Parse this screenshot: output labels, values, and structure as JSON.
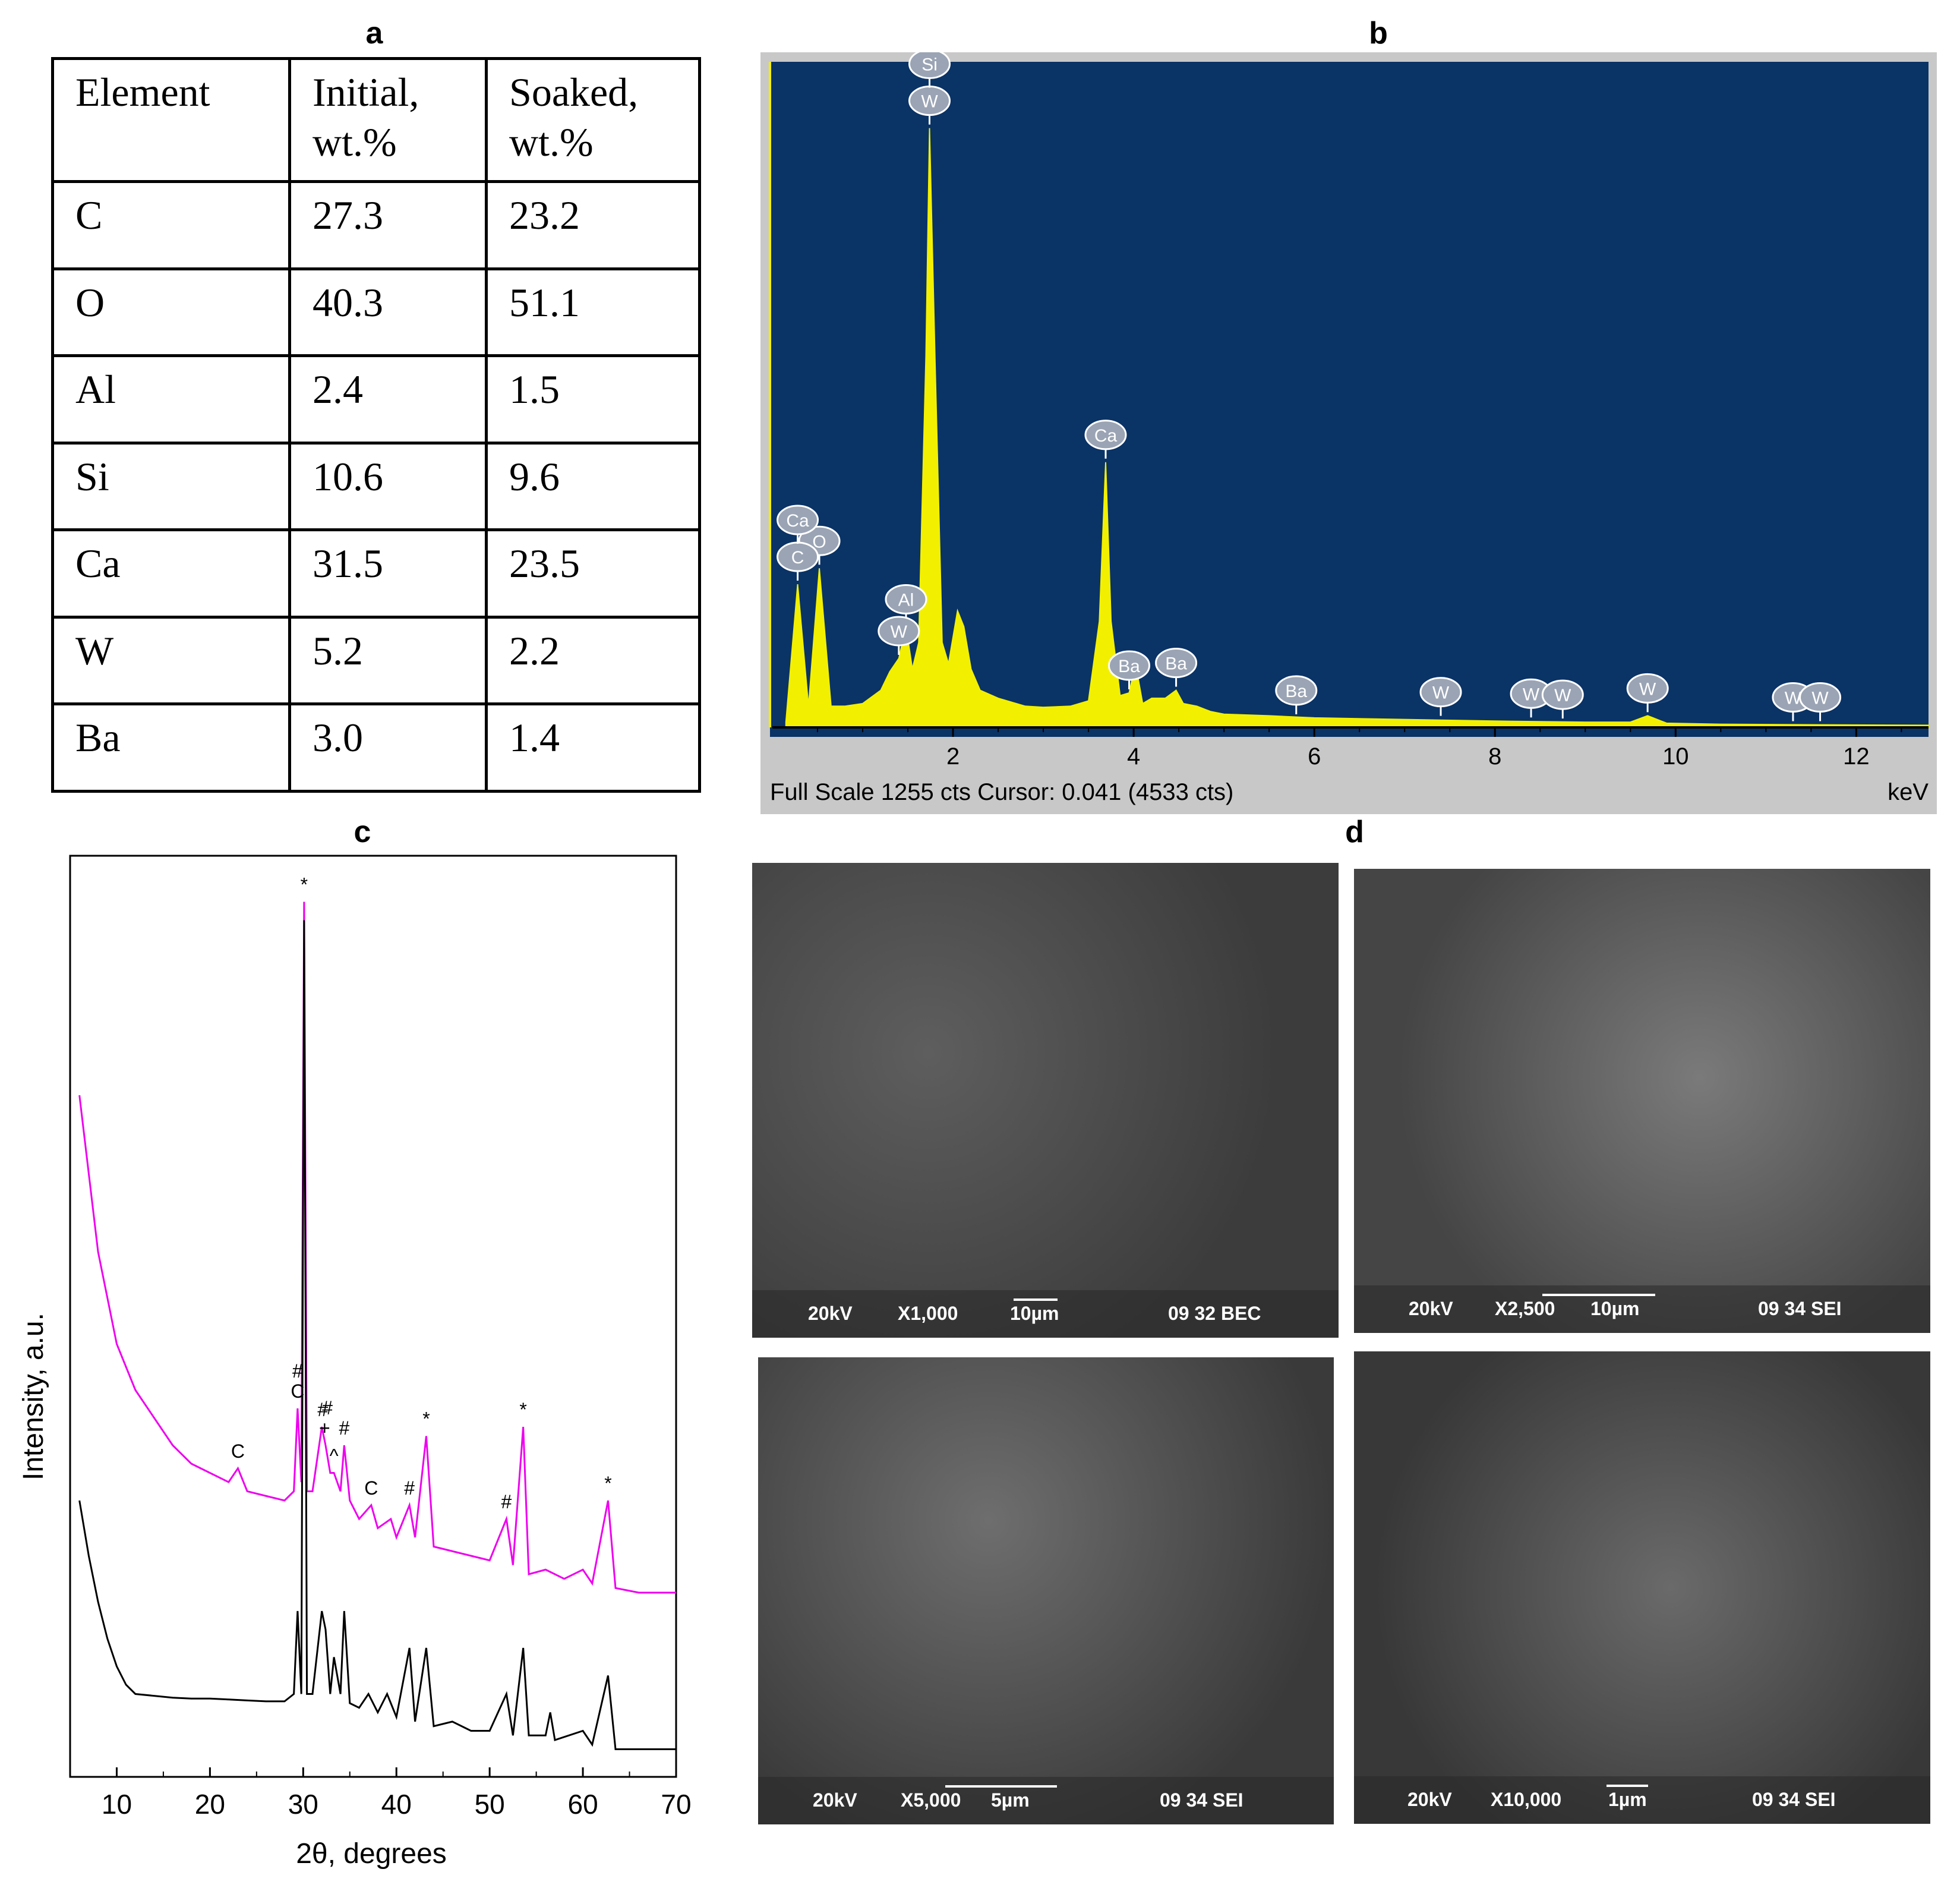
{
  "panels": {
    "a": "a",
    "b": "b",
    "c": "c",
    "d": "d"
  },
  "table": {
    "headers": [
      "Element",
      "Initial,\nwt.%",
      "Soaked,\nwt.%"
    ],
    "rows": [
      [
        "C",
        "27.3",
        "23.2"
      ],
      [
        "O",
        "40.3",
        "51.1"
      ],
      [
        "Al",
        "2.4",
        "1.5"
      ],
      [
        "Si",
        "10.6",
        "9.6"
      ],
      [
        "Ca",
        "31.5",
        "23.5"
      ],
      [
        "W",
        "5.2",
        "2.2"
      ],
      [
        "Ba",
        "3.0",
        "1.4"
      ]
    ]
  },
  "eds": {
    "status": "Full Scale 1255 cts Cursor: 0.041  (4533 cts)",
    "unit": "keV",
    "colors": {
      "background": "#0a3366",
      "spectrum": "#f2f000",
      "frame": "#c8c8c8"
    }
  },
  "xrd": {
    "colors": {
      "soaked": "#ee00ee",
      "initial": "#000000"
    }
  },
  "chart_data": [
    {
      "type": "area",
      "title": "",
      "xlabel": "keV",
      "ylabel": "",
      "xlim": [
        0,
        12.8
      ],
      "ylim": [
        0,
        1255
      ],
      "x_ticks": [
        2,
        4,
        6,
        8,
        10,
        12
      ],
      "series": [
        {
          "x": [
            0.15,
            0.28,
            0.4,
            0.52,
            0.65,
            0.8,
            1.0,
            1.2,
            1.3,
            1.4,
            1.48,
            1.55,
            1.62,
            1.7,
            1.74,
            1.8,
            1.88,
            1.95,
            2.05,
            2.12,
            2.2,
            2.3,
            2.5,
            2.8,
            3.0,
            3.3,
            3.5,
            3.62,
            3.69,
            3.75,
            3.85,
            3.95,
            4.02,
            4.1,
            4.2,
            4.35,
            4.47,
            4.55,
            4.7,
            4.85,
            5.0,
            5.5,
            6.0,
            7.0,
            8.0,
            9.0,
            9.5,
            9.69,
            9.9,
            10.5,
            11.5,
            12.8
          ],
          "y": [
            10,
            270,
            40,
            300,
            40,
            40,
            45,
            70,
            105,
            130,
            190,
            110,
            160,
            700,
            1130,
            700,
            160,
            120,
            220,
            190,
            110,
            70,
            55,
            40,
            38,
            40,
            50,
            200,
            500,
            200,
            60,
            65,
            120,
            45,
            55,
            55,
            70,
            45,
            40,
            30,
            25,
            22,
            18,
            15,
            12,
            10,
            10,
            22,
            8,
            6,
            5,
            4
          ]
        }
      ],
      "peak_labels": [
        {
          "label": "W",
          "x": 1.74
        },
        {
          "label": "Si",
          "x": 1.74
        },
        {
          "label": "O",
          "x": 0.52
        },
        {
          "label": "C",
          "x": 0.28
        },
        {
          "label": "Ca",
          "x": 0.28
        },
        {
          "label": "Al",
          "x": 1.48
        },
        {
          "label": "W",
          "x": 1.4
        },
        {
          "label": "Ca",
          "x": 3.69
        },
        {
          "label": "Ba",
          "x": 3.95
        },
        {
          "label": "Ba",
          "x": 4.47
        },
        {
          "label": "Ba",
          "x": 5.8
        },
        {
          "label": "W",
          "x": 7.4
        },
        {
          "label": "W",
          "x": 8.4
        },
        {
          "label": "W",
          "x": 8.75
        },
        {
          "label": "W",
          "x": 9.69
        },
        {
          "label": "W",
          "x": 11.3
        },
        {
          "label": "W",
          "x": 11.6
        }
      ]
    },
    {
      "type": "line",
      "title": "",
      "xlabel": "2θ, degrees",
      "ylabel": "Intensity, a.u.",
      "xlim": [
        5,
        70
      ],
      "x_ticks": [
        10,
        20,
        30,
        40,
        50,
        60,
        70
      ],
      "grid": false,
      "series": [
        {
          "x": [
            6,
            8,
            10,
            12,
            14,
            16,
            18,
            20,
            22,
            23,
            24,
            26,
            28,
            29,
            29.4,
            29.8,
            30.1,
            30.4,
            31,
            32,
            32.4,
            32.9,
            33.3,
            34,
            34.4,
            35,
            36,
            37.3,
            38,
            39.4,
            40,
            41.4,
            42,
            43.2,
            44,
            46,
            48,
            50,
            51.8,
            52.5,
            53.6,
            54.2,
            56,
            58,
            60,
            61,
            62.7,
            63.5,
            66,
            70
          ],
          "y": [
            0.74,
            0.57,
            0.47,
            0.42,
            0.39,
            0.36,
            0.34,
            0.33,
            0.32,
            0.335,
            0.31,
            0.305,
            0.3,
            0.31,
            0.4,
            0.32,
            0.95,
            0.31,
            0.31,
            0.38,
            0.36,
            0.33,
            0.33,
            0.31,
            0.36,
            0.3,
            0.28,
            0.295,
            0.27,
            0.28,
            0.26,
            0.295,
            0.26,
            0.37,
            0.25,
            0.245,
            0.24,
            0.235,
            0.28,
            0.23,
            0.38,
            0.22,
            0.225,
            0.215,
            0.225,
            0.21,
            0.3,
            0.205,
            0.2,
            0.2
          ]
        },
        {
          "x": [
            6,
            7,
            8,
            9,
            10,
            11,
            12,
            14,
            16,
            18,
            20,
            22,
            24,
            26,
            28,
            29,
            29.4,
            29.8,
            30.1,
            30.4,
            31,
            32,
            32.4,
            32.9,
            33.3,
            34,
            34.4,
            35,
            36,
            37,
            38,
            39,
            40,
            41.4,
            42,
            43.2,
            44,
            46,
            48,
            50,
            51.8,
            52.5,
            53.6,
            54.2,
            56,
            56.5,
            57,
            60,
            61,
            62.7,
            63.5,
            66,
            70
          ],
          "y": [
            0.3,
            0.24,
            0.19,
            0.15,
            0.12,
            0.1,
            0.09,
            0.088,
            0.086,
            0.085,
            0.085,
            0.084,
            0.083,
            0.082,
            0.082,
            0.09,
            0.18,
            0.09,
            0.93,
            0.09,
            0.09,
            0.18,
            0.16,
            0.09,
            0.13,
            0.09,
            0.18,
            0.08,
            0.075,
            0.09,
            0.07,
            0.09,
            0.065,
            0.14,
            0.06,
            0.14,
            0.055,
            0.06,
            0.05,
            0.05,
            0.09,
            0.045,
            0.14,
            0.045,
            0.045,
            0.07,
            0.04,
            0.05,
            0.035,
            0.11,
            0.03,
            0.03,
            0.03
          ]
        }
      ],
      "annotations": [
        {
          "text": "*",
          "x": 30.1
        },
        {
          "text": "C",
          "x": 29.4
        },
        {
          "text": "#",
          "x": 29.4
        },
        {
          "text": "+",
          "x": 32.3
        },
        {
          "text": "#",
          "x": 32.1
        },
        {
          "text": "#",
          "x": 32.6
        },
        {
          "text": "#",
          "x": 34.4
        },
        {
          "text": "^",
          "x": 33.3
        },
        {
          "text": "C",
          "x": 23.0
        },
        {
          "text": "C",
          "x": 37.3
        },
        {
          "text": "#",
          "x": 41.4
        },
        {
          "text": "*",
          "x": 43.2
        },
        {
          "text": "#",
          "x": 51.8
        },
        {
          "text": "*",
          "x": 53.6
        },
        {
          "text": "*",
          "x": 62.7
        }
      ]
    }
  ],
  "sem": [
    {
      "kv": "20kV",
      "mag": "X1,000",
      "scale": "10µm",
      "info": "09 32 BEC"
    },
    {
      "kv": "20kV",
      "mag": "X2,500",
      "scale": "10µm",
      "info": "09 34 SEI"
    },
    {
      "kv": "20kV",
      "mag": "X5,000",
      "scale": "5µm",
      "info": "09 34 SEI"
    },
    {
      "kv": "20kV",
      "mag": "X10,000",
      "scale": "1µm",
      "info": "09 34 SEI"
    }
  ]
}
